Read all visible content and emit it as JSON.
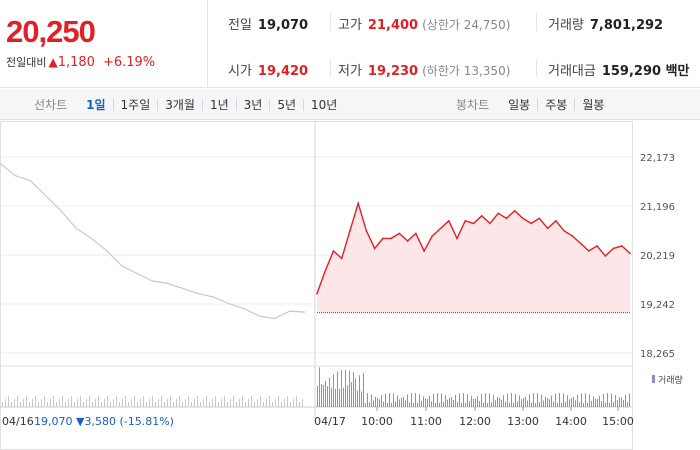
{
  "quote": {
    "price": "20,250",
    "change_label": "전일대비",
    "change_arrow": "▲",
    "change_value": "1,180",
    "change_pct": "+6.19%",
    "prev_close_label": "전일",
    "prev_close": "19,070",
    "high_label": "고가",
    "high": "21,400",
    "upper_limit": "(상한가 24,750)",
    "volume_label": "거래량",
    "volume": "7,801,292",
    "open_label": "시가",
    "open": "19,420",
    "low_label": "저가",
    "low": "19,230",
    "lower_limit": "(하한가 13,350)",
    "amount_label": "거래대금",
    "amount": "159,290 백만"
  },
  "tabs": {
    "line_head": "선차트",
    "line_tabs": [
      "1일",
      "1주일",
      "3개월",
      "1년",
      "3년",
      "5년",
      "10년"
    ],
    "active_line_tab": "1일",
    "candle_head": "봉차트",
    "candle_tabs": [
      "일봉",
      "주봉",
      "월봉"
    ]
  },
  "colors": {
    "up": "#e31f26",
    "down": "#1a5fc4",
    "area_fill": "#fde6e8",
    "prev_line": "#c9c9c9",
    "volume": "#9b86c9"
  },
  "chart_data": {
    "type": "line",
    "y_ticks": [
      "22,173",
      "21,196",
      "20,219",
      "19,242",
      "18,265"
    ],
    "ylim": [
      18265,
      22173
    ],
    "prev_close_reference": 19070,
    "series": [
      {
        "name": "04/16",
        "x": [
          0,
          5,
          10,
          15,
          20,
          25,
          30,
          35,
          40,
          45,
          50,
          55,
          60,
          65,
          70,
          75,
          80,
          85,
          90,
          95,
          100
        ],
        "values": [
          22050,
          21800,
          21700,
          21400,
          21100,
          20750,
          20550,
          20300,
          20000,
          19850,
          19700,
          19650,
          19550,
          19450,
          19380,
          19250,
          19150,
          19000,
          18950,
          19100,
          19080
        ]
      },
      {
        "name": "04/17",
        "x": [
          "09:00",
          "09:10",
          "09:20",
          "09:30",
          "09:40",
          "09:50",
          "10:00",
          "10:10",
          "10:20",
          "10:30",
          "10:40",
          "10:50",
          "11:00",
          "11:10",
          "11:20",
          "11:30",
          "11:40",
          "11:50",
          "12:00",
          "12:10",
          "12:20",
          "12:30",
          "12:40",
          "12:50",
          "13:00",
          "13:10",
          "13:20",
          "13:30",
          "13:40",
          "13:50",
          "14:00",
          "14:10",
          "14:20",
          "14:30",
          "14:40",
          "14:50",
          "15:00",
          "15:10",
          "15:20"
        ],
        "values": [
          19450,
          19900,
          20300,
          20150,
          20700,
          21250,
          20700,
          20350,
          20550,
          20550,
          20650,
          20500,
          20650,
          20300,
          20600,
          20750,
          20900,
          20550,
          20900,
          20850,
          21000,
          20850,
          21050,
          20950,
          21100,
          20950,
          20850,
          20950,
          20750,
          20900,
          20700,
          20600,
          20450,
          20300,
          20400,
          20200,
          20350,
          20400,
          20250
        ]
      }
    ],
    "x_labels": [
      "04/16",
      "04/17",
      "10:00",
      "11:00",
      "12:00",
      "13:00",
      "14:00",
      "15:00"
    ],
    "volume_legend": "거래량",
    "footer": {
      "date": "04/16",
      "close": "19,070",
      "arrow": "▼",
      "change": "3,580",
      "pct": "(-15.81%)"
    }
  }
}
